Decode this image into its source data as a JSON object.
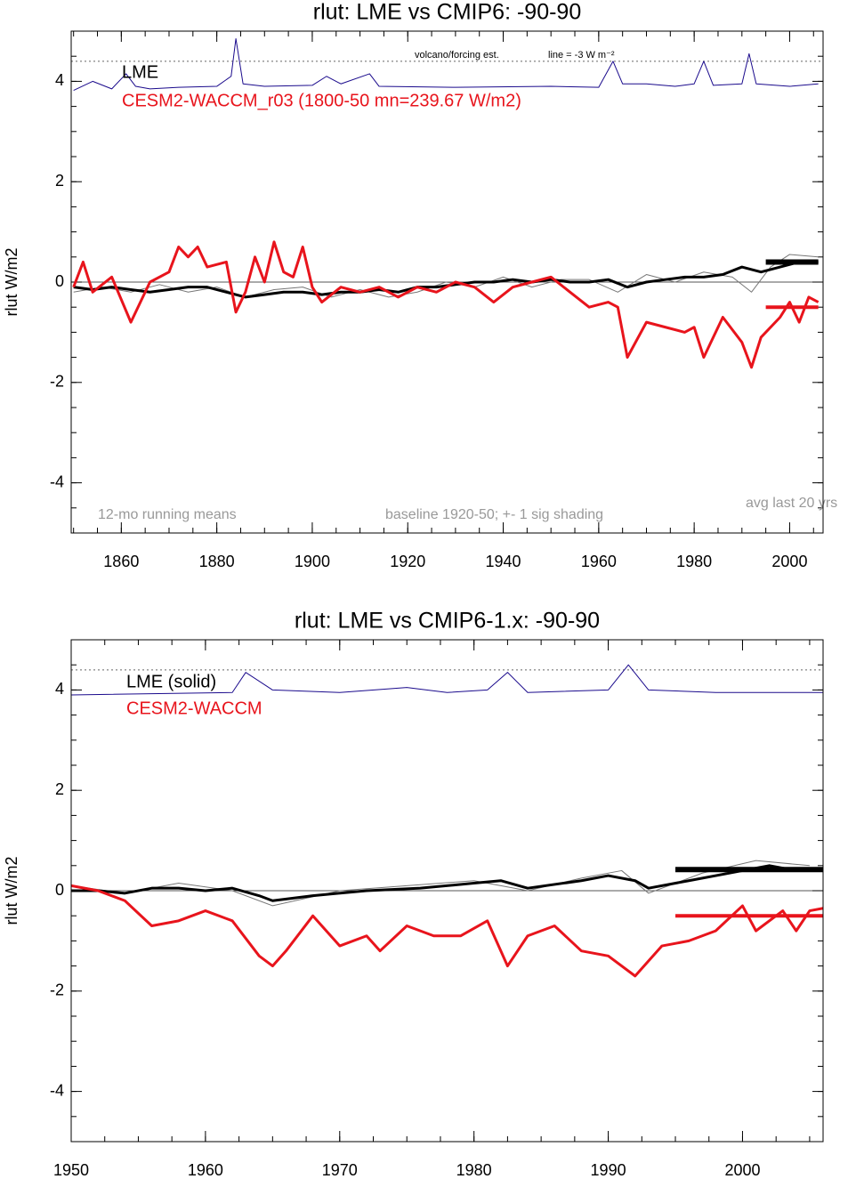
{
  "chart_data": [
    {
      "type": "line",
      "title": "rlut: LME vs CMIP6: -90-90",
      "ylabel": "rlut W/m2",
      "xlim": [
        1849.5,
        2007
      ],
      "ylim": [
        -5,
        5
      ],
      "xticks": [
        1860,
        1880,
        1900,
        1920,
        1940,
        1960,
        1980,
        2000
      ],
      "yticks": [
        -4,
        -2,
        0,
        2,
        4
      ],
      "reference_lines": [
        {
          "value": 4.4,
          "style": "dotted"
        },
        {
          "value": 0,
          "style": "solid"
        }
      ],
      "annotations": [
        "volcano/forcing est.",
        "line = -3 W m⁻²",
        "12-mo running means",
        "baseline 1920-50; +- 1 sig shading",
        "avg last 20 yrs"
      ],
      "series": [
        {
          "color": "#1a0a8c",
          "width": 1,
          "x": [
            1850,
            1854,
            1858,
            1861,
            1863,
            1866,
            1872,
            1880,
            1883,
            1884,
            1885.5,
            1890,
            1900,
            1903,
            1906,
            1912,
            1914,
            1930,
            1950,
            1960,
            1963,
            1965,
            1970,
            1976,
            1980,
            1982,
            1984,
            1990,
            1991.5,
            1993,
            2000,
            2006
          ],
          "values": [
            3.82,
            4.0,
            3.85,
            4.15,
            3.9,
            3.85,
            3.88,
            3.9,
            4.1,
            4.85,
            3.95,
            3.9,
            3.92,
            4.1,
            3.95,
            4.15,
            3.9,
            3.88,
            3.9,
            3.88,
            4.4,
            3.95,
            3.95,
            3.9,
            3.95,
            4.4,
            3.92,
            3.95,
            4.55,
            3.95,
            3.9,
            3.95
          ]
        },
        {
          "color": "#777777",
          "width": 1,
          "x": [
            1850,
            1856,
            1862,
            1868,
            1874,
            1880,
            1886,
            1892,
            1898,
            1904,
            1910,
            1916,
            1922,
            1928,
            1934,
            1940,
            1946,
            1952,
            1958,
            1964,
            1970,
            1976,
            1982,
            1988,
            1992,
            1996,
            2000,
            2006
          ],
          "values": [
            -0.2,
            -0.1,
            -0.2,
            -0.05,
            -0.2,
            -0.1,
            -0.3,
            -0.15,
            -0.1,
            -0.3,
            -0.15,
            -0.3,
            -0.2,
            0.0,
            -0.1,
            0.1,
            -0.1,
            0.05,
            0.05,
            -0.2,
            0.15,
            0.0,
            0.2,
            0.1,
            -0.2,
            0.3,
            0.55,
            0.5
          ]
        },
        {
          "name": "LME",
          "color": "#000000",
          "width": 3,
          "x": [
            1850,
            1854,
            1858,
            1862,
            1866,
            1870,
            1874,
            1878,
            1882,
            1886,
            1890,
            1894,
            1898,
            1902,
            1906,
            1910,
            1914,
            1918,
            1922,
            1926,
            1930,
            1934,
            1938,
            1942,
            1946,
            1950,
            1954,
            1958,
            1962,
            1966,
            1970,
            1974,
            1978,
            1982,
            1986,
            1990,
            1994,
            1998,
            2002,
            2006
          ],
          "values": [
            -0.1,
            -0.15,
            -0.1,
            -0.15,
            -0.2,
            -0.15,
            -0.1,
            -0.1,
            -0.2,
            -0.3,
            -0.25,
            -0.2,
            -0.2,
            -0.25,
            -0.2,
            -0.2,
            -0.15,
            -0.2,
            -0.1,
            -0.1,
            -0.05,
            0.0,
            0.0,
            0.05,
            0.0,
            0.05,
            0.0,
            0.0,
            0.05,
            -0.1,
            0.0,
            0.05,
            0.1,
            0.1,
            0.15,
            0.3,
            0.2,
            0.3,
            0.4,
            0.4
          ]
        },
        {
          "name": "CESM2-WACCM_r03 (1800-50 mn=239.67 W/m2)",
          "color": "#e8141c",
          "width": 3,
          "x": [
            1850,
            1852,
            1854,
            1858,
            1862,
            1866,
            1870,
            1872,
            1874,
            1876,
            1878,
            1882,
            1884,
            1886,
            1888,
            1890,
            1892,
            1894,
            1896,
            1898,
            1900,
            1902,
            1906,
            1910,
            1914,
            1918,
            1922,
            1926,
            1930,
            1934,
            1938,
            1942,
            1946,
            1950,
            1954,
            1958,
            1962,
            1964,
            1966,
            1970,
            1974,
            1978,
            1980,
            1982,
            1986,
            1990,
            1992,
            1994,
            1998,
            2000,
            2002,
            2004,
            2006
          ],
          "values": [
            -0.1,
            0.4,
            -0.2,
            0.1,
            -0.8,
            0.0,
            0.2,
            0.7,
            0.5,
            0.7,
            0.3,
            0.4,
            -0.6,
            -0.2,
            0.5,
            0.0,
            0.8,
            0.2,
            0.1,
            0.7,
            -0.1,
            -0.4,
            -0.1,
            -0.2,
            -0.1,
            -0.3,
            -0.1,
            -0.2,
            0.0,
            -0.1,
            -0.4,
            -0.1,
            0.0,
            0.1,
            -0.2,
            -0.5,
            -0.4,
            -0.5,
            -1.5,
            -0.8,
            -0.9,
            -1.0,
            -0.9,
            -1.5,
            -0.7,
            -1.2,
            -1.7,
            -1.1,
            -0.7,
            -0.4,
            -0.8,
            -0.3,
            -0.4
          ]
        },
        {
          "color": "#000000",
          "width": 6,
          "x": [
            1995,
            2006
          ],
          "values": [
            0.4,
            0.4
          ]
        },
        {
          "color": "#e8141c",
          "width": 4,
          "x": [
            1995,
            2006
          ],
          "values": [
            -0.5,
            -0.5
          ]
        }
      ]
    },
    {
      "type": "line",
      "title": "rlut: LME vs CMIP6-1.x: -90-90",
      "ylabel": "rlut W/m2",
      "xlim": [
        1950,
        2006
      ],
      "ylim": [
        -5,
        5
      ],
      "xticks": [
        1950,
        1960,
        1970,
        1980,
        1990,
        2000
      ],
      "yticks": [
        -4,
        -2,
        0,
        2,
        4
      ],
      "reference_lines": [
        {
          "value": 4.4,
          "style": "dotted"
        },
        {
          "value": 0,
          "style": "solid"
        }
      ],
      "series": [
        {
          "color": "#1a0a8c",
          "width": 1,
          "x": [
            1950,
            1962,
            1963,
            1965,
            1970,
            1975,
            1978,
            1981,
            1982.5,
            1984,
            1990,
            1991.5,
            1993,
            1998,
            2006
          ],
          "values": [
            3.9,
            3.95,
            4.35,
            4.0,
            3.95,
            4.05,
            3.95,
            4.0,
            4.35,
            3.95,
            4.0,
            4.5,
            4.0,
            3.95,
            3.95
          ]
        },
        {
          "color": "#777777",
          "width": 1,
          "x": [
            1950,
            1954,
            1958,
            1962,
            1965,
            1970,
            1975,
            1980,
            1984,
            1988,
            1991,
            1993,
            1997,
            2001,
            2005
          ],
          "values": [
            0.1,
            -0.05,
            0.15,
            0.0,
            -0.3,
            0.0,
            0.1,
            0.2,
            0.0,
            0.25,
            0.4,
            -0.05,
            0.35,
            0.6,
            0.5
          ]
        },
        {
          "name": "LME (solid)",
          "color": "#000000",
          "width": 3,
          "x": [
            1950,
            1952,
            1954,
            1956,
            1958,
            1960,
            1962,
            1964,
            1965,
            1968,
            1972,
            1976,
            1980,
            1982,
            1984,
            1988,
            1990,
            1992,
            1993,
            1996,
            2000,
            2002,
            2004,
            2006
          ],
          "values": [
            0.0,
            0.0,
            -0.05,
            0.05,
            0.05,
            0.0,
            0.05,
            -0.1,
            -0.2,
            -0.1,
            0.0,
            0.05,
            0.15,
            0.2,
            0.05,
            0.2,
            0.3,
            0.2,
            0.05,
            0.2,
            0.4,
            0.5,
            0.4,
            0.4
          ]
        },
        {
          "name": "CESM2-WACCM",
          "color": "#e8141c",
          "width": 3,
          "x": [
            1950,
            1952,
            1954,
            1956,
            1958,
            1960,
            1962,
            1964,
            1965,
            1966,
            1968,
            1970,
            1972,
            1973,
            1975,
            1977,
            1979,
            1981,
            1982.5,
            1984,
            1986,
            1988,
            1990,
            1992,
            1994,
            1996,
            1998,
            2000,
            2001,
            2003,
            2004,
            2005,
            2006
          ],
          "values": [
            0.1,
            0.0,
            -0.2,
            -0.7,
            -0.6,
            -0.4,
            -0.6,
            -1.3,
            -1.5,
            -1.2,
            -0.5,
            -1.1,
            -0.9,
            -1.2,
            -0.7,
            -0.9,
            -0.9,
            -0.6,
            -1.5,
            -0.9,
            -0.7,
            -1.2,
            -1.3,
            -1.7,
            -1.1,
            -1.0,
            -0.8,
            -0.3,
            -0.8,
            -0.4,
            -0.8,
            -0.4,
            -0.35
          ]
        },
        {
          "color": "#000000",
          "width": 6,
          "x": [
            1995,
            2006
          ],
          "values": [
            0.42,
            0.42
          ]
        },
        {
          "color": "#e8141c",
          "width": 4,
          "x": [
            1995,
            2006
          ],
          "values": [
            -0.5,
            -0.5
          ]
        }
      ]
    }
  ]
}
